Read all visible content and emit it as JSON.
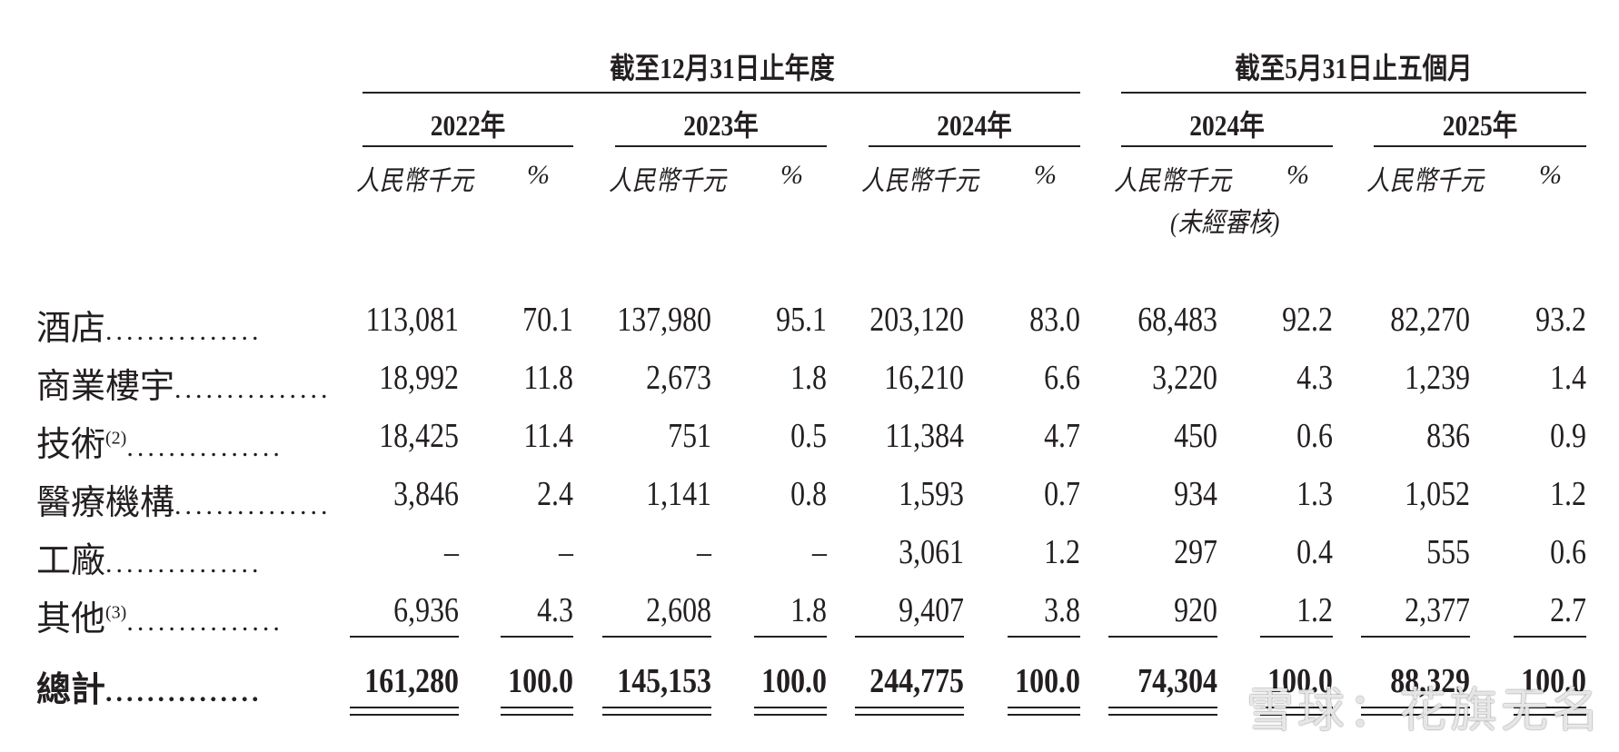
{
  "groups": [
    {
      "title": "截至12月31日止年度"
    },
    {
      "title": "截至5月31日止五個月"
    }
  ],
  "years": [
    "2022年",
    "2023年",
    "2024年",
    "2024年",
    "2025年"
  ],
  "unit_label": "人民幣千元",
  "pct_label": "%",
  "unaudited_note": "(未經審核)",
  "rows": [
    {
      "label": "酒店",
      "sup": "",
      "values": [
        "113,081",
        "70.1",
        "137,980",
        "95.1",
        "203,120",
        "83.0",
        "68,483",
        "92.2",
        "82,270",
        "93.2"
      ]
    },
    {
      "label": "商業樓宇",
      "sup": "",
      "values": [
        "18,992",
        "11.8",
        "2,673",
        "1.8",
        "16,210",
        "6.6",
        "3,220",
        "4.3",
        "1,239",
        "1.4"
      ]
    },
    {
      "label": "技術",
      "sup": "(2)",
      "values": [
        "18,425",
        "11.4",
        "751",
        "0.5",
        "11,384",
        "4.7",
        "450",
        "0.6",
        "836",
        "0.9"
      ]
    },
    {
      "label": "醫療機構",
      "sup": "",
      "values": [
        "3,846",
        "2.4",
        "1,141",
        "0.8",
        "1,593",
        "0.7",
        "934",
        "1.3",
        "1,052",
        "1.2"
      ]
    },
    {
      "label": "工廠",
      "sup": "",
      "values": [
        "–",
        "–",
        "–",
        "–",
        "3,061",
        "1.2",
        "297",
        "0.4",
        "555",
        "0.6"
      ]
    },
    {
      "label": "其他",
      "sup": "(3)",
      "values": [
        "6,936",
        "4.3",
        "2,608",
        "1.8",
        "9,407",
        "3.8",
        "920",
        "1.2",
        "2,377",
        "2.7"
      ]
    }
  ],
  "total": {
    "label": "總計",
    "values": [
      "161,280",
      "100.0",
      "145,153",
      "100.0",
      "244,775",
      "100.0",
      "74,304",
      "100.0",
      "88,329",
      "100.0"
    ]
  },
  "dots": "...............",
  "watermark": "雪球：花旗无名"
}
